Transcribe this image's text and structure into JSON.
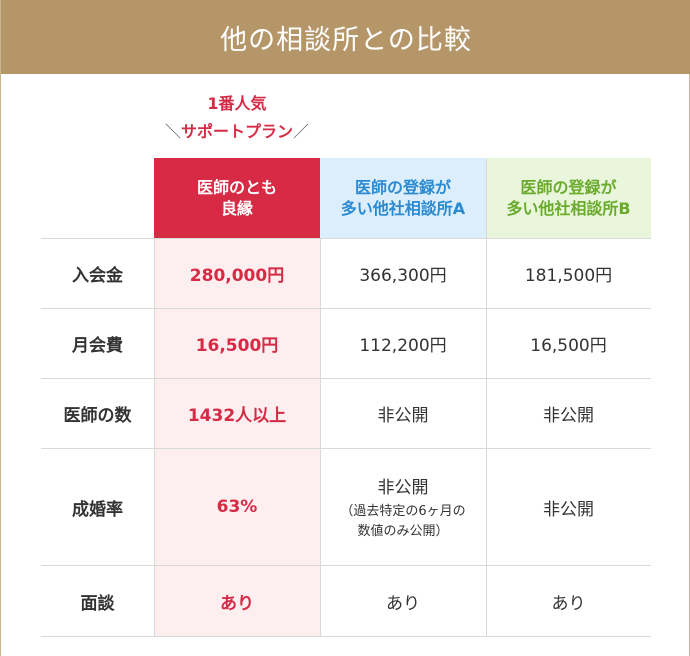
{
  "title": "他の相談所との比較",
  "badge": {
    "line1": "1番人気",
    "slash_left": "＼",
    "line2": "サポートプラン",
    "slash_right": "／"
  },
  "columns": {
    "ours": {
      "line1": "医師のとも",
      "line2": "良縁"
    },
    "a": {
      "line1": "医師の登録が",
      "line2": "多い他社相談所A"
    },
    "b": {
      "line1": "医師の登録が",
      "line2": "多い他社相談所B"
    }
  },
  "rows": [
    {
      "label": "入会金",
      "ours": "280,000円",
      "a": "366,300円",
      "b": "181,500円"
    },
    {
      "label": "月会費",
      "ours": "16,500円",
      "a": "112,200円",
      "b": "16,500円"
    },
    {
      "label": "医師の数",
      "ours": "1432人以上",
      "a": "非公開",
      "b": "非公開"
    },
    {
      "label": "成婚率",
      "ours": "63%",
      "a": "非公開",
      "a_note1": "（過去特定の6ヶ月の",
      "a_note2": "数値のみ公開）",
      "b": "非公開"
    },
    {
      "label": "面談",
      "ours": "あり",
      "a": "あり",
      "b": "あり"
    }
  ],
  "colors": {
    "title_bg": "#b59669",
    "accent_red": "#d62a45",
    "col_a_text": "#2b8ad2",
    "col_b_text": "#6aab2c"
  }
}
